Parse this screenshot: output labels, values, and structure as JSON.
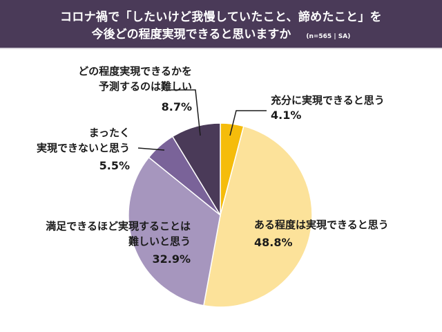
{
  "header": {
    "title_line1": "コロナ禍で「したいけど我慢していたこと、諦めたこと」を",
    "title_line2": "今後どの程度実現できると思いますか",
    "note": "(n=565 | SA)",
    "background": "#4a3a58"
  },
  "labels": {
    "s0": {
      "line1": "充分に実現できると思う",
      "pct": "4.1%"
    },
    "s1": {
      "line1": "ある程度は実現できると思う",
      "pct": "48.8%"
    },
    "s2": {
      "line1": "満足できるほど実現することは",
      "line2": "難しいと思う",
      "pct": "32.9%"
    },
    "s3": {
      "line1": "まったく",
      "line2": "実現できないと思う",
      "pct": "5.5%"
    },
    "s4": {
      "line1": "どの程度実現できるかを",
      "line2": "予測するのは難しい",
      "pct": "8.7%"
    }
  },
  "chart_data": {
    "type": "pie",
    "title": "コロナ禍で「したいけど我慢していたこと、諦めたこと」を今後どの程度実現できると思いますか",
    "subtitle": "(n=565 | SA)",
    "start_angle": "12 o'clock, clockwise",
    "categories": [
      "充分に実現できると思う",
      "ある程度は実現できると思う",
      "満足できるほど実現することは難しいと思う",
      "まったく実現できないと思う",
      "どの程度実現できるかを予測するのは難しい"
    ],
    "values": [
      4.1,
      48.8,
      32.9,
      5.5,
      8.7
    ],
    "unit": "%",
    "colors": [
      "#f5bc0b",
      "#fce29a",
      "#a696be",
      "#7a6399",
      "#4a3a58"
    ],
    "legend": "none (direct labels with leader lines)"
  }
}
